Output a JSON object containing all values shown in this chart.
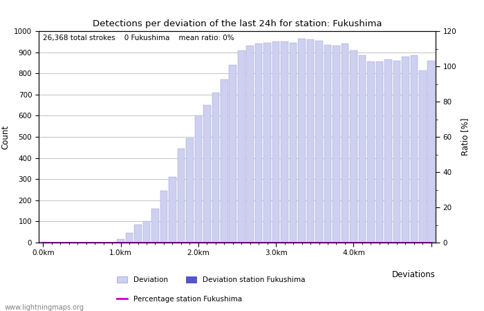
{
  "title": "Detections per deviation of the last 24h for station: Fukushima",
  "subtitle": "26,368 total strokes    0 Fukushima    mean ratio: 0%",
  "xlabel": "Deviations",
  "ylabel_left": "Count",
  "ylabel_right": "Ratio [%]",
  "ylim_left": [
    0,
    1000
  ],
  "ylim_right": [
    0,
    120
  ],
  "xtick_positions": [
    0,
    9,
    18,
    27,
    36,
    45
  ],
  "xtick_labels": [
    "0.0km",
    "1.0km",
    "2.0km",
    "3.0km",
    "4.0km",
    ""
  ],
  "ytick_left": [
    0,
    100,
    200,
    300,
    400,
    500,
    600,
    700,
    800,
    900,
    1000
  ],
  "ytick_right": [
    0,
    20,
    40,
    60,
    80,
    100,
    120
  ],
  "bar_values": [
    2,
    0,
    0,
    0,
    0,
    0,
    0,
    0,
    0,
    15,
    45,
    85,
    100,
    160,
    245,
    310,
    445,
    495,
    600,
    650,
    710,
    770,
    840,
    910,
    930,
    940,
    945,
    950,
    950,
    945,
    965,
    960,
    955,
    935,
    930,
    940,
    910,
    885,
    855,
    855,
    865,
    860,
    880,
    885,
    815,
    860
  ],
  "station_values": [
    0,
    0,
    0,
    0,
    0,
    0,
    0,
    0,
    0,
    0,
    0,
    0,
    0,
    0,
    0,
    0,
    0,
    0,
    0,
    0,
    0,
    0,
    0,
    0,
    0,
    0,
    0,
    0,
    0,
    0,
    0,
    0,
    0,
    0,
    0,
    0,
    0,
    0,
    0,
    0,
    0,
    0,
    0,
    0,
    0,
    0
  ],
  "percentage_values": [
    0,
    0,
    0,
    0,
    0,
    0,
    0,
    0,
    0,
    0,
    0,
    0,
    0,
    0,
    0,
    0,
    0,
    0,
    0,
    0,
    0,
    0,
    0,
    0,
    0,
    0,
    0,
    0,
    0,
    0,
    0,
    0,
    0,
    0,
    0,
    0,
    0,
    0,
    0,
    0,
    0,
    0,
    0,
    0,
    0,
    0
  ],
  "bar_color": "#cdd0f0",
  "bar_edge_color": "#9999cc",
  "station_bar_color": "#5555cc",
  "station_bar_edge_color": "#3333aa",
  "percentage_line_color": "#cc00cc",
  "bg_color": "#ffffff",
  "grid_color": "#aaaaaa",
  "watermark": "www.lightningmaps.org",
  "legend_items": [
    "Deviation",
    "Deviation station Fukushima",
    "Percentage station Fukushima"
  ]
}
